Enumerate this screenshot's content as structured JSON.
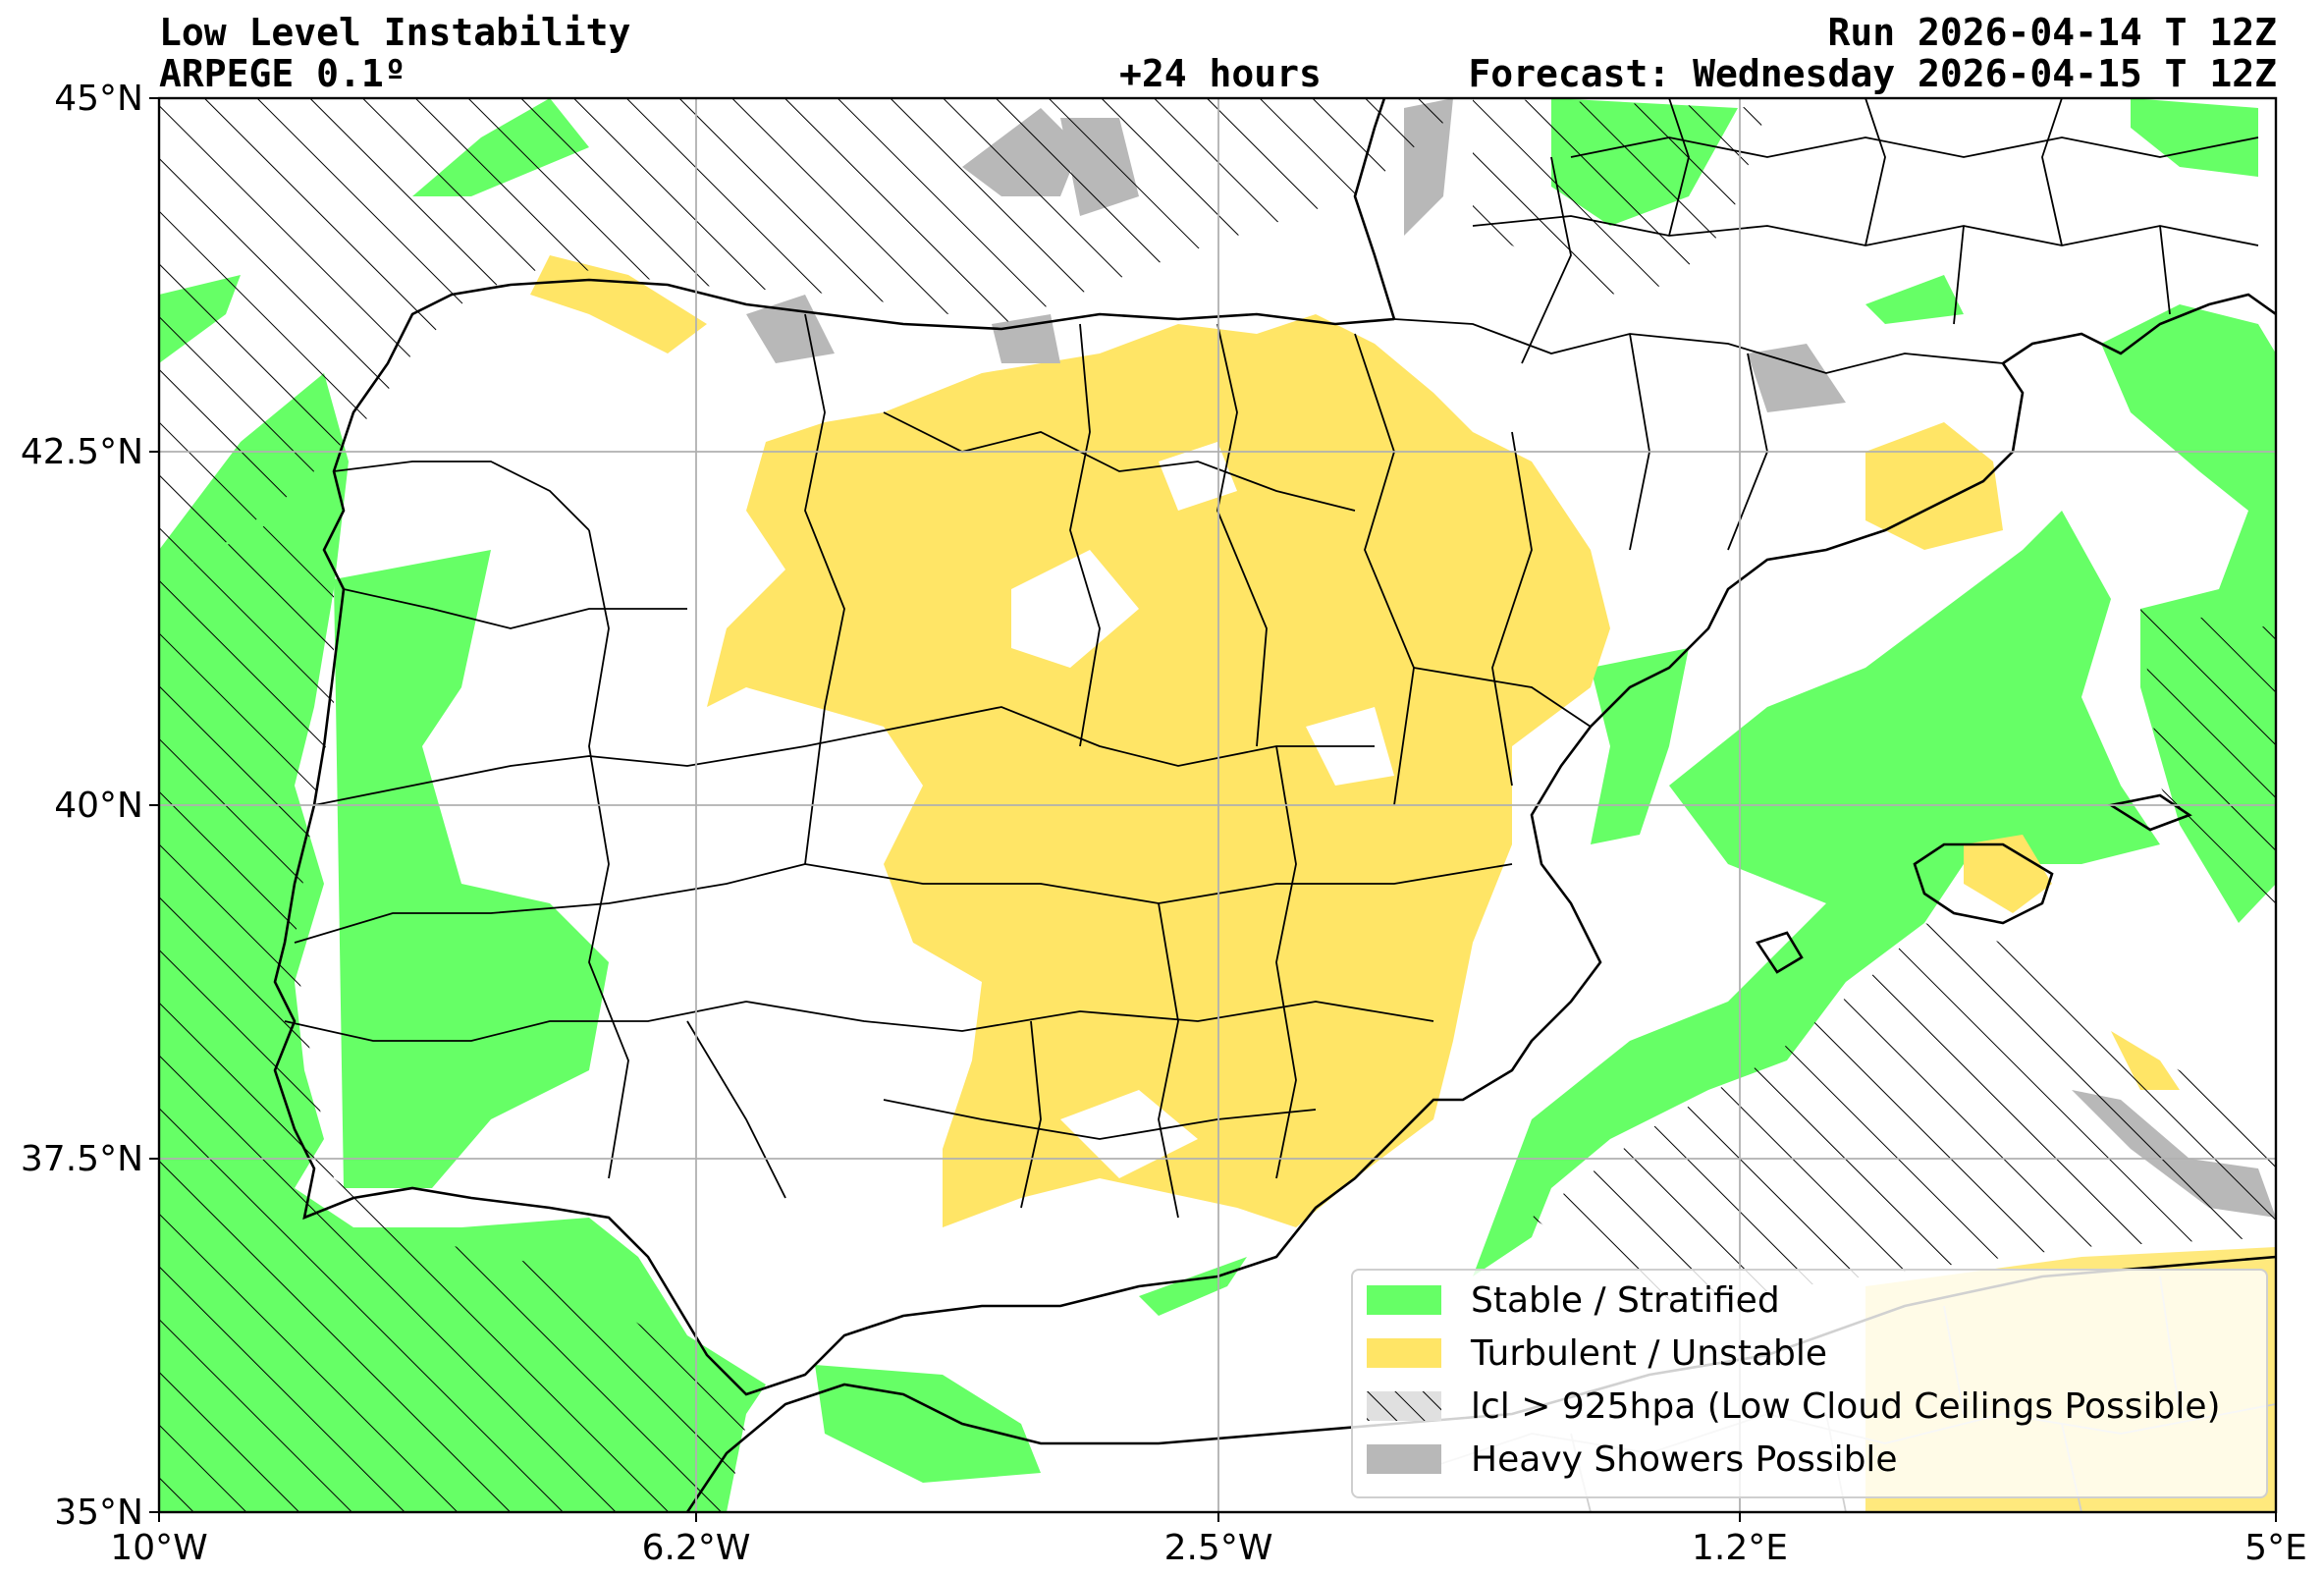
{
  "header": {
    "title": "Low Level Instability",
    "model": "ARPEGE 0.1º",
    "lead": "+24 hours",
    "run": "Run 2026-04-14 T 12Z",
    "forecast": "Forecast: Wednesday 2026-04-15 T 12Z"
  },
  "map": {
    "lon_range": [
      -10,
      5
    ],
    "lat_range": [
      35,
      45
    ],
    "lat_ticks": [
      {
        "value": 35,
        "label": "35°N"
      },
      {
        "value": 37.5,
        "label": "37.5°N"
      },
      {
        "value": 40,
        "label": "40°N"
      },
      {
        "value": 42.5,
        "label": "42.5°N"
      },
      {
        "value": 45,
        "label": "45°N"
      }
    ],
    "lon_ticks": [
      {
        "value": -10,
        "label": "10°W"
      },
      {
        "value": -6.2,
        "label": "6.2°W"
      },
      {
        "value": -2.5,
        "label": "2.5°W"
      },
      {
        "value": 1.2,
        "label": "1.2°E"
      },
      {
        "value": 5,
        "label": "5°E"
      }
    ],
    "gridlines": true
  },
  "legend": {
    "placement": "lower-right",
    "items": [
      {
        "label": "Stable / Stratified",
        "color": "#66ff66",
        "pattern": "solid"
      },
      {
        "label": "Turbulent / Unstable",
        "color": "#ffe566",
        "pattern": "solid"
      },
      {
        "label": "lcl > 925hpa (Low Cloud Ceilings Possible)",
        "color": "#e0e0e0",
        "pattern": "hatch"
      },
      {
        "label": "Heavy Showers Possible",
        "color": "#b8b8b8",
        "pattern": "solid"
      }
    ]
  },
  "colors": {
    "stable": "#66ff66",
    "turbulent": "#ffe566",
    "showers": "#b8b8b8",
    "grid": "#b0b0b0",
    "border": "#000000"
  }
}
